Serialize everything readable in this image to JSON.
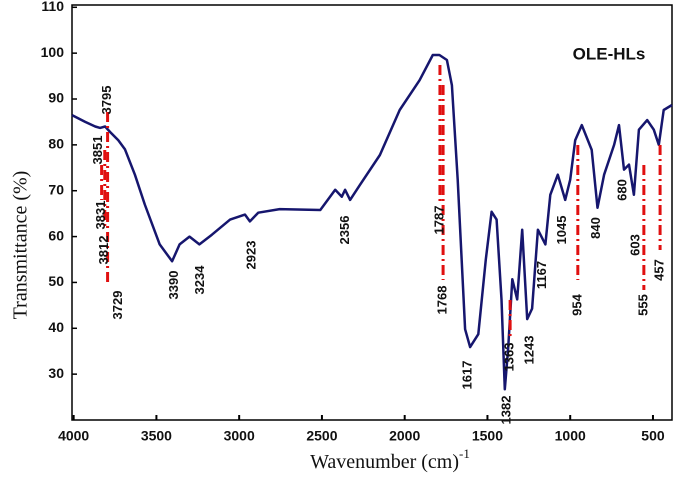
{
  "chart_data": {
    "type": "line",
    "title": "OLE-HLs",
    "xlabel": "Wavenumber (cm)",
    "xlabel_superscript": "-1",
    "ylabel": "Transmittance (%)",
    "xlim": [
      4010,
      385
    ],
    "ylim": [
      20,
      110.5
    ],
    "xticks": [
      4000,
      3500,
      3000,
      2500,
      2000,
      1500,
      1000,
      500
    ],
    "yticks": [
      30,
      40,
      50,
      60,
      70,
      80,
      90,
      100,
      110
    ],
    "x": [
      4010,
      3930,
      3870,
      3840,
      3810,
      3780,
      3730,
      3690,
      3630,
      3570,
      3480,
      3405,
      3360,
      3300,
      3240,
      3165,
      3055,
      2965,
      2935,
      2885,
      2755,
      2510,
      2420,
      2380,
      2360,
      2330,
      2270,
      2150,
      2030,
      1910,
      1830,
      1790,
      1745,
      1715,
      1680,
      1635,
      1605,
      1555,
      1510,
      1475,
      1445,
      1415,
      1395,
      1375,
      1350,
      1320,
      1290,
      1260,
      1230,
      1195,
      1150,
      1120,
      1075,
      1030,
      1000,
      970,
      930,
      870,
      835,
      795,
      735,
      705,
      675,
      645,
      615,
      585,
      535,
      495,
      465,
      435,
      385
    ],
    "series": [
      {
        "name": "OLE-HLs",
        "color": "#16166e",
        "values": [
          86.5,
          85,
          84,
          83.7,
          84,
          82.8,
          81,
          79,
          73.5,
          67,
          58.3,
          54.6,
          58.3,
          60,
          58.3,
          60.4,
          63.7,
          64.8,
          63.3,
          65.2,
          66,
          65.8,
          70.2,
          68.7,
          70.2,
          68,
          71.3,
          77.8,
          87.6,
          94.1,
          99.6,
          99.6,
          98.5,
          93,
          72.4,
          39.8,
          35.9,
          38.7,
          55,
          65.4,
          63.7,
          46.3,
          26.7,
          35.4,
          50.7,
          46.3,
          61.5,
          42,
          44.3,
          61.5,
          58.3,
          69.1,
          73.5,
          68,
          72.4,
          81,
          84.3,
          78.9,
          66.3,
          73.5,
          80,
          84.3,
          74.6,
          75.7,
          69.1,
          83.3,
          85.4,
          83.3,
          80,
          87.6,
          88.7
        ]
      }
    ],
    "peak_labels": [
      3851,
      3831,
      3812,
      3795,
      3729,
      3390,
      3234,
      2923,
      2356,
      1787,
      1768,
      1617,
      1382,
      1363,
      1243,
      1167,
      1045,
      954,
      840,
      680,
      603,
      555,
      457
    ]
  }
}
